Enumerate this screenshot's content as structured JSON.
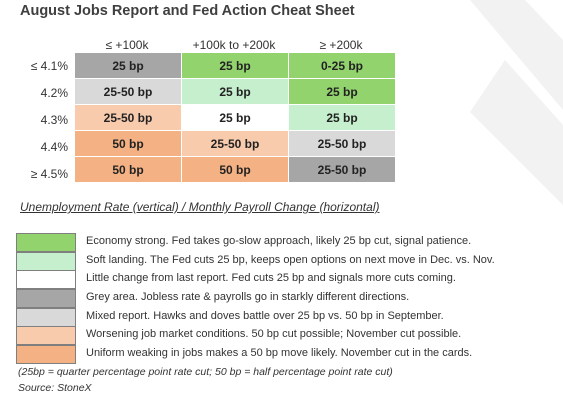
{
  "title": "August Jobs Report and Fed Action Cheat Sheet",
  "columns": [
    "≤ +100k",
    "+100k to +200k",
    "≥ +200k"
  ],
  "rows": [
    {
      "label": "≤ 4.1%",
      "cells": [
        {
          "text": "25 bp",
          "color": "#a6a6a6"
        },
        {
          "text": "25 bp",
          "color": "#92d36e"
        },
        {
          "text": "0-25 bp",
          "color": "#92d36e"
        }
      ]
    },
    {
      "label": "4.2%",
      "cells": [
        {
          "text": "25-50 bp",
          "color": "#d9d9d9"
        },
        {
          "text": "25 bp",
          "color": "#c6efce"
        },
        {
          "text": "25 bp",
          "color": "#92d36e"
        }
      ]
    },
    {
      "label": "4.3%",
      "cells": [
        {
          "text": "25-50 bp",
          "color": "#f8cbad"
        },
        {
          "text": "25 bp",
          "color": "#ffffff"
        },
        {
          "text": "25 bp",
          "color": "#c6efce"
        }
      ]
    },
    {
      "label": "4.4%",
      "cells": [
        {
          "text": "50 bp",
          "color": "#f4b183"
        },
        {
          "text": "25-50 bp",
          "color": "#f8cbad"
        },
        {
          "text": "25-50 bp",
          "color": "#d9d9d9"
        }
      ]
    },
    {
      "label": "≥ 4.5%",
      "cells": [
        {
          "text": "50 bp",
          "color": "#f4b183"
        },
        {
          "text": "50 bp",
          "color": "#f4b183"
        },
        {
          "text": "25-50 bp",
          "color": "#a6a6a6"
        }
      ]
    }
  ],
  "caption": "Unemployment Rate (vertical)   /   Monthly Payroll Change (horizontal)",
  "legend": [
    {
      "color": "#92d36e",
      "text": "Economy strong. Fed takes go-slow approach, likely 25 bp cut, signal patience."
    },
    {
      "color": "#c6efce",
      "text": "Soft landing. The Fed cuts 25 bp, keeps open options on next move in Dec. vs. Nov."
    },
    {
      "color": "#ffffff",
      "text": "Little change from last report. Fed cuts 25 bp and signals more cuts coming."
    },
    {
      "color": "#a6a6a6",
      "text": "Grey area. Jobless rate & payrolls go in starkly different directions."
    },
    {
      "color": "#d9d9d9",
      "text": "Mixed report. Hawks and doves battle over 25 bp vs. 50 bp in September."
    },
    {
      "color": "#f8cbad",
      "text": "Worsening job market conditions. 50 bp cut possible; November cut possible."
    },
    {
      "color": "#f4b183",
      "text": "Uniform weaking in jobs makes a 50 bp move likely. November cut in the cards."
    }
  ],
  "note": "(25bp = quarter percentage point rate cut; 50 bp = half percentage point rate cut)",
  "source": "Source: StoneX",
  "watermark_color": "#f2f2f2"
}
